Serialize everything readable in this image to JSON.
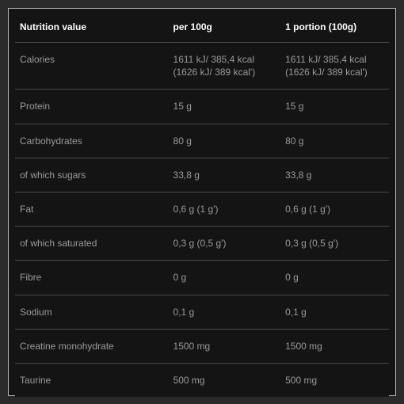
{
  "table": {
    "background_color": "#141414",
    "text_color": "#9a9a9a",
    "header_text_color": "#ffffff",
    "divider_color": "#4a4a4a",
    "font_family": "Verdana, Arial, sans-serif",
    "header_fontsize": 12,
    "body_fontsize": 12,
    "columns": [
      {
        "key": "label",
        "header": "Nutrition value",
        "width": "41%"
      },
      {
        "key": "per100g",
        "header": "per 100g",
        "width": "30%"
      },
      {
        "key": "portion",
        "header": "1 portion (100g)",
        "width": "29%"
      }
    ],
    "rows": [
      {
        "label": "Calories",
        "per100g": "1611 kJ/ 385,4 kcal (1626 kJ/ 389 kcal')",
        "portion": "1611 kJ/ 385,4 kcal (1626 kJ/ 389 kcal')"
      },
      {
        "label": "Protein",
        "per100g": "15 g",
        "portion": "15 g"
      },
      {
        "label": "Carbohydrates",
        "per100g": "80 g",
        "portion": "80 g"
      },
      {
        "label": "of which sugars",
        "per100g": "33,8 g",
        "portion": "33,8 g"
      },
      {
        "label": "Fat",
        "per100g": "0,6 g (1 g')",
        "portion": "0,6 g (1 g')"
      },
      {
        "label": "of which saturated",
        "per100g": "0,3 g (0,5 g')",
        "portion": "0,3 g (0,5 g')"
      },
      {
        "label": "Fibre",
        "per100g": "0 g",
        "portion": "0 g"
      },
      {
        "label": "Sodium",
        "per100g": "0,1 g",
        "portion": "0,1 g"
      },
      {
        "label": "Creatine monohydrate",
        "per100g": "1500 mg",
        "portion": "1500 mg"
      },
      {
        "label": "Taurine",
        "per100g": "500 mg",
        "portion": "500 mg"
      }
    ]
  }
}
